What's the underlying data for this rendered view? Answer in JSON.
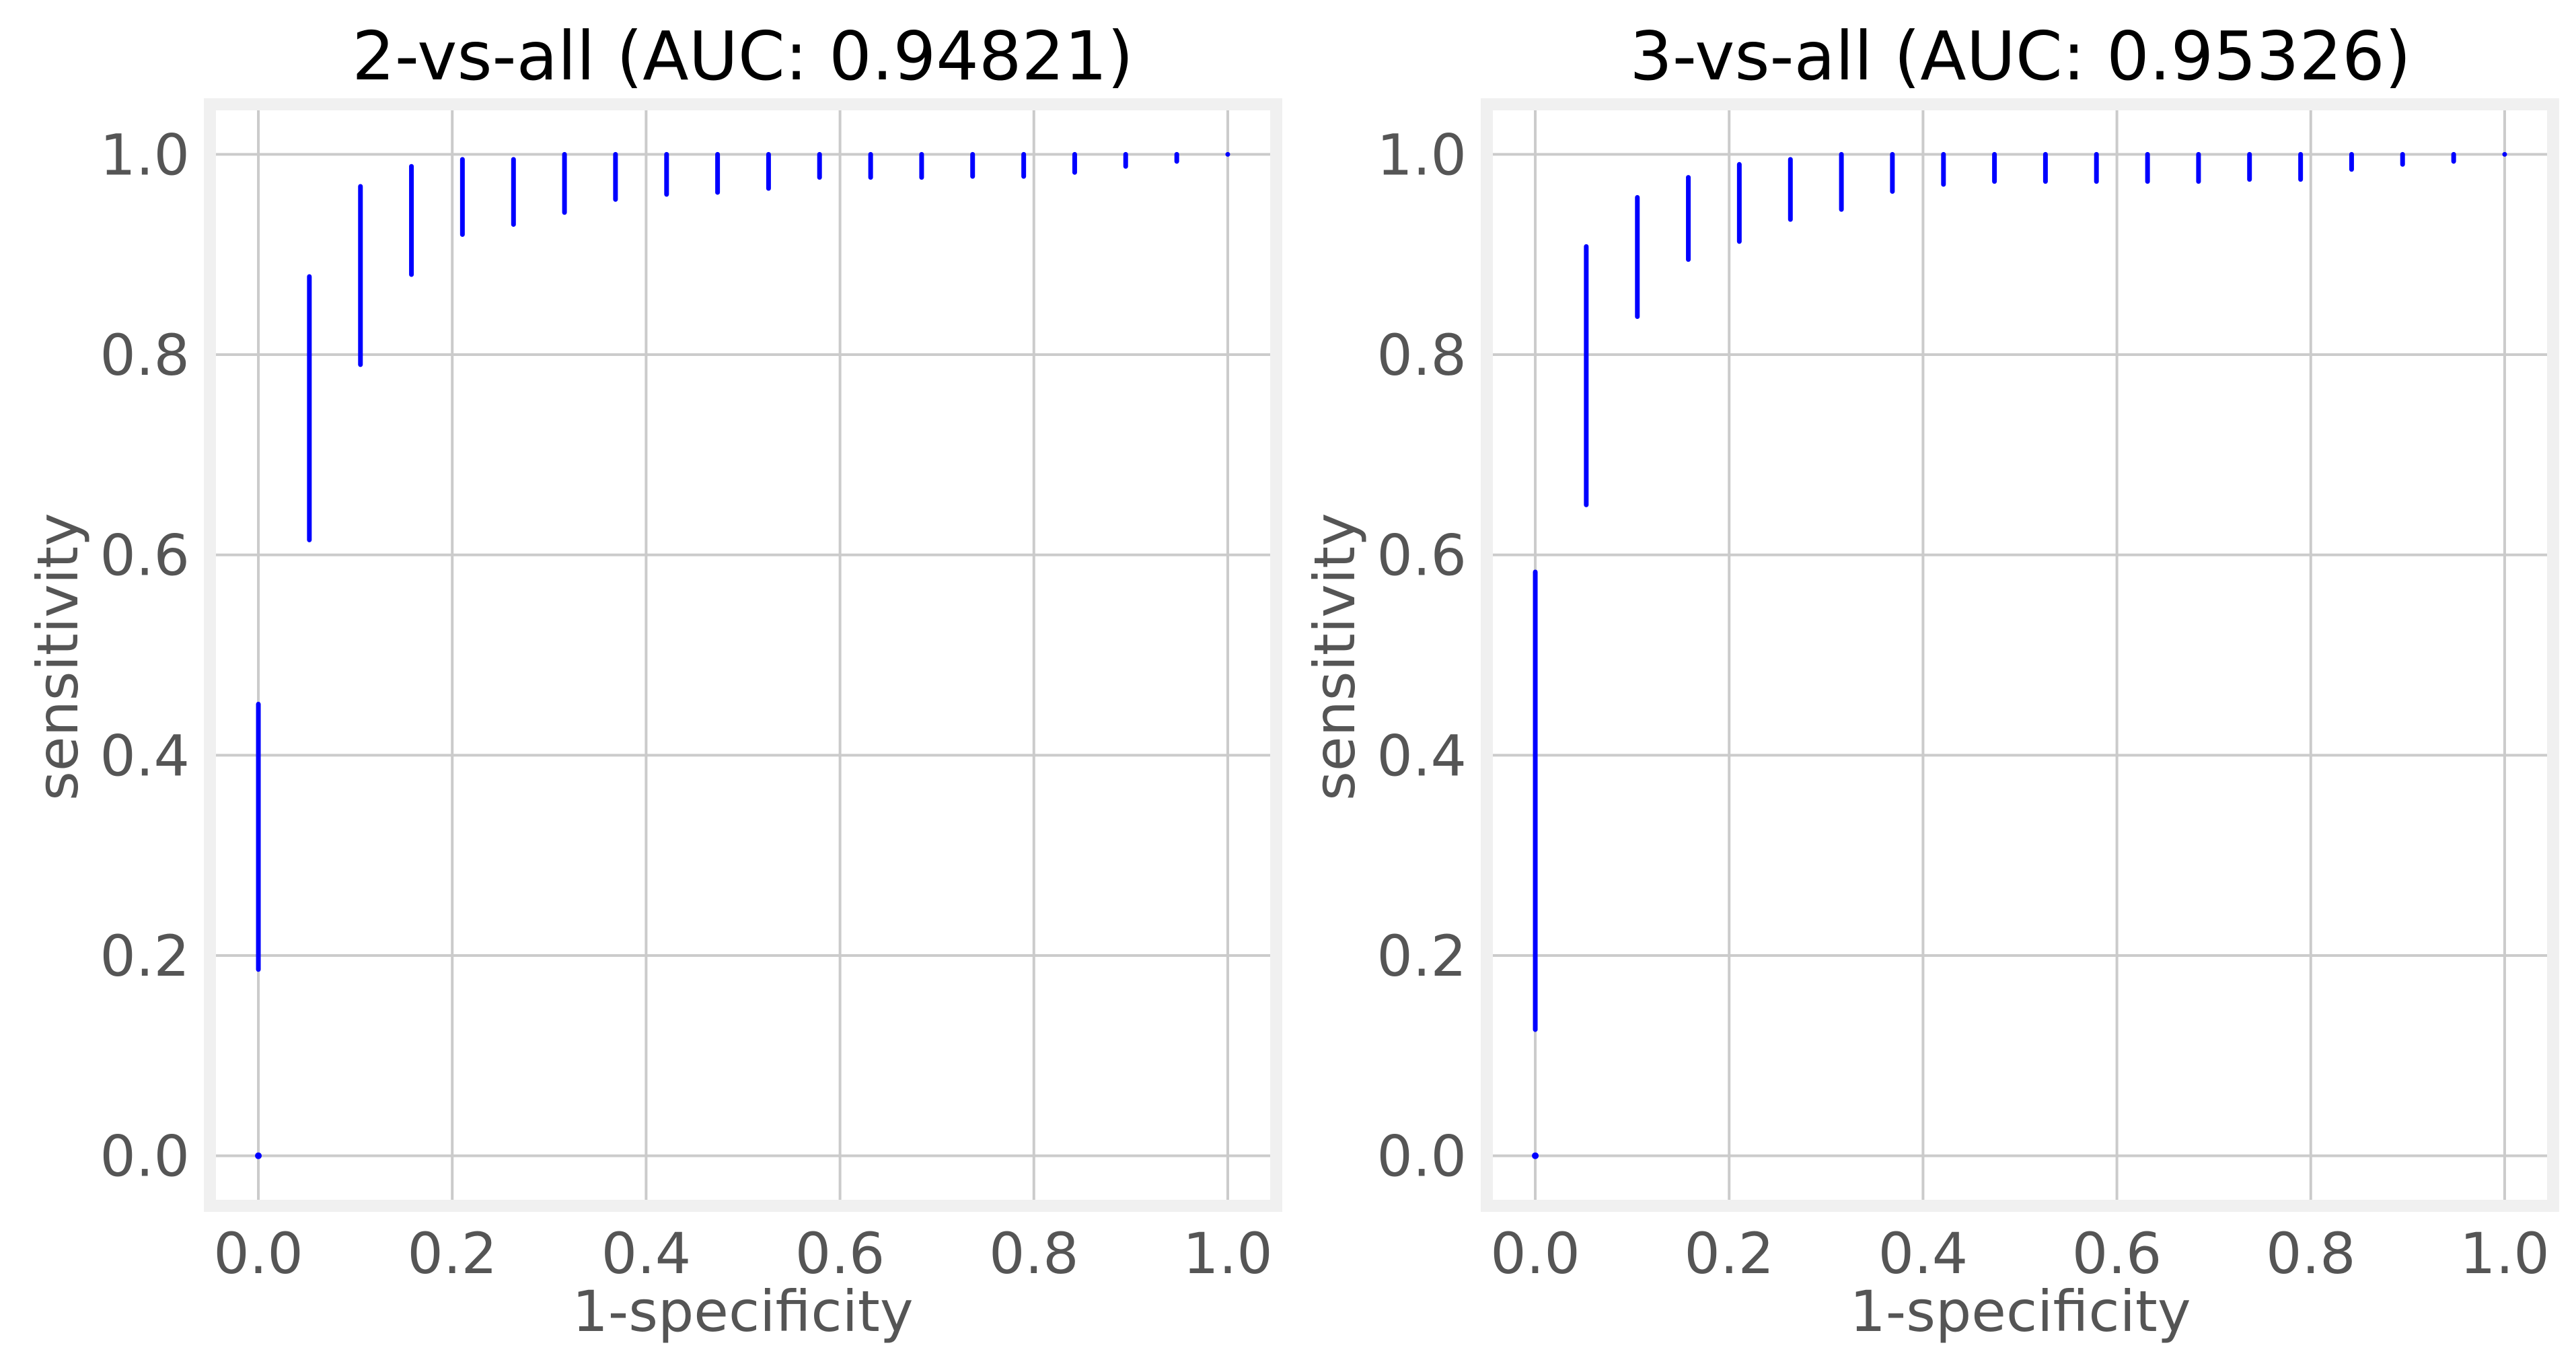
{
  "colors": {
    "marker": "#0000ff",
    "frame": "#f0f0f0",
    "grid": "#cbcbcb",
    "tick_text": "#555555",
    "title_text": "#000000"
  },
  "chart_data": [
    {
      "type": "scatter",
      "title": "2-vs-all (AUC: 0.94821)",
      "xlabel": "1-specificity",
      "ylabel": "sensitivity",
      "xlim": [
        -0.05,
        1.05
      ],
      "ylim": [
        -0.05,
        1.05
      ],
      "x_ticks": [
        "0.0",
        "0.2",
        "0.4",
        "0.6",
        "0.8",
        "1.0"
      ],
      "y_ticks": [
        "0.0",
        "0.2",
        "0.4",
        "0.6",
        "0.8",
        "1.0"
      ],
      "grid": true,
      "marker_color": "#0000ff",
      "series": [
        {
          "vertical_point_bands": [
            {
              "x": 0.0,
              "y_min": 0.186,
              "y_max": 0.451
            },
            {
              "x": 0.0526,
              "y_min": 0.615,
              "y_max": 0.878
            },
            {
              "x": 0.1053,
              "y_min": 0.79,
              "y_max": 0.968
            },
            {
              "x": 0.1579,
              "y_min": 0.88,
              "y_max": 0.988
            },
            {
              "x": 0.2105,
              "y_min": 0.92,
              "y_max": 0.995
            },
            {
              "x": 0.2632,
              "y_min": 0.93,
              "y_max": 0.995
            },
            {
              "x": 0.3158,
              "y_min": 0.942,
              "y_max": 1.0
            },
            {
              "x": 0.3684,
              "y_min": 0.955,
              "y_max": 1.0
            },
            {
              "x": 0.4211,
              "y_min": 0.96,
              "y_max": 1.0
            },
            {
              "x": 0.4737,
              "y_min": 0.962,
              "y_max": 1.0
            },
            {
              "x": 0.5263,
              "y_min": 0.966,
              "y_max": 1.0
            },
            {
              "x": 0.5789,
              "y_min": 0.977,
              "y_max": 1.0
            },
            {
              "x": 0.6316,
              "y_min": 0.977,
              "y_max": 1.0
            },
            {
              "x": 0.6842,
              "y_min": 0.977,
              "y_max": 1.0
            },
            {
              "x": 0.7368,
              "y_min": 0.978,
              "y_max": 1.0
            },
            {
              "x": 0.7895,
              "y_min": 0.978,
              "y_max": 1.0
            },
            {
              "x": 0.8421,
              "y_min": 0.982,
              "y_max": 1.0
            },
            {
              "x": 0.8947,
              "y_min": 0.988,
              "y_max": 1.0
            },
            {
              "x": 0.9474,
              "y_min": 0.993,
              "y_max": 1.0
            },
            {
              "x": 1.0,
              "y_min": 1.0,
              "y_max": 1.0
            }
          ],
          "isolated_points": [
            {
              "x": 0.0,
              "y": 0.0
            }
          ]
        }
      ]
    },
    {
      "type": "scatter",
      "title": "3-vs-all (AUC: 0.95326)",
      "xlabel": "1-specificity",
      "ylabel": "sensitivity",
      "xlim": [
        -0.05,
        1.05
      ],
      "ylim": [
        -0.05,
        1.05
      ],
      "x_ticks": [
        "0.0",
        "0.2",
        "0.4",
        "0.6",
        "0.8",
        "1.0"
      ],
      "y_ticks": [
        "0.0",
        "0.2",
        "0.4",
        "0.6",
        "0.8",
        "1.0"
      ],
      "grid": true,
      "marker_color": "#0000ff",
      "series": [
        {
          "vertical_point_bands": [
            {
              "x": 0.0,
              "y_min": 0.126,
              "y_max": 0.583
            },
            {
              "x": 0.0526,
              "y_min": 0.65,
              "y_max": 0.908
            },
            {
              "x": 0.1053,
              "y_min": 0.838,
              "y_max": 0.957
            },
            {
              "x": 0.1579,
              "y_min": 0.895,
              "y_max": 0.977
            },
            {
              "x": 0.2105,
              "y_min": 0.913,
              "y_max": 0.99
            },
            {
              "x": 0.2632,
              "y_min": 0.935,
              "y_max": 0.995
            },
            {
              "x": 0.3158,
              "y_min": 0.945,
              "y_max": 1.0
            },
            {
              "x": 0.3684,
              "y_min": 0.963,
              "y_max": 1.0
            },
            {
              "x": 0.4211,
              "y_min": 0.97,
              "y_max": 1.0
            },
            {
              "x": 0.4737,
              "y_min": 0.973,
              "y_max": 1.0
            },
            {
              "x": 0.5263,
              "y_min": 0.973,
              "y_max": 1.0
            },
            {
              "x": 0.5789,
              "y_min": 0.973,
              "y_max": 1.0
            },
            {
              "x": 0.6316,
              "y_min": 0.973,
              "y_max": 1.0
            },
            {
              "x": 0.6842,
              "y_min": 0.973,
              "y_max": 1.0
            },
            {
              "x": 0.7368,
              "y_min": 0.975,
              "y_max": 1.0
            },
            {
              "x": 0.7895,
              "y_min": 0.975,
              "y_max": 1.0
            },
            {
              "x": 0.8421,
              "y_min": 0.985,
              "y_max": 1.0
            },
            {
              "x": 0.8947,
              "y_min": 0.99,
              "y_max": 1.0
            },
            {
              "x": 0.9474,
              "y_min": 0.993,
              "y_max": 1.0
            },
            {
              "x": 1.0,
              "y_min": 1.0,
              "y_max": 1.0
            }
          ],
          "isolated_points": [
            {
              "x": 0.0,
              "y": 0.0
            }
          ]
        }
      ]
    }
  ]
}
